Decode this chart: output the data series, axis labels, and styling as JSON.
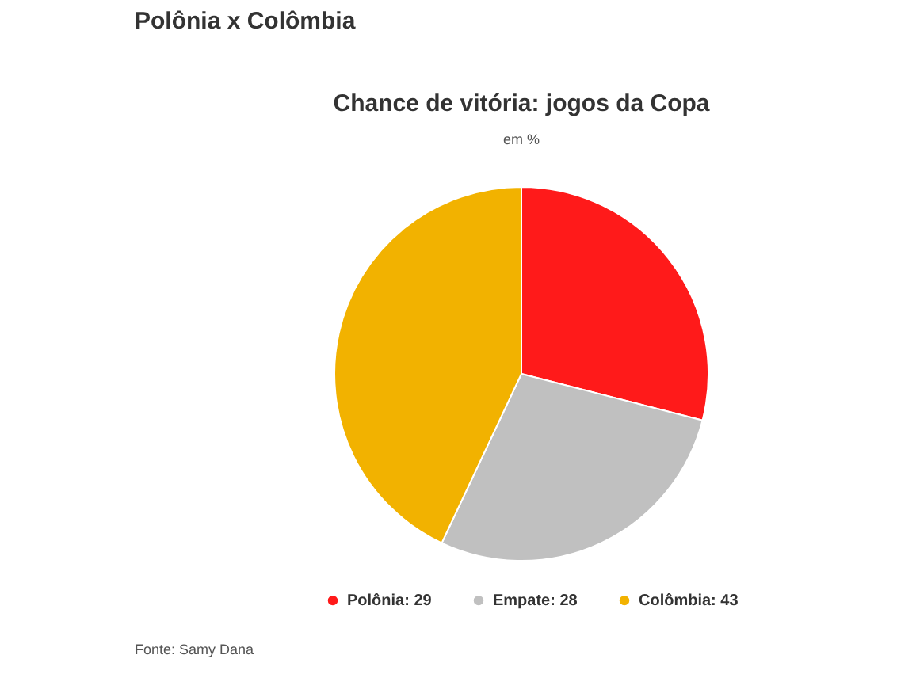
{
  "chart_data": {
    "type": "pie",
    "title": "Polônia x Colômbia",
    "subtitle": "Chance de vitória: jogos da Copa",
    "ylabel": "em %",
    "categories": [
      "Polônia: 29",
      "Empate: 28",
      "Colômbia: 43"
    ],
    "values": [
      29,
      28,
      43
    ],
    "colors": [
      "#ff1a1a",
      "#c0c0c0",
      "#f2b200"
    ],
    "legend": "bottom",
    "annotations": [
      "Fonte: Samy Dana"
    ]
  }
}
